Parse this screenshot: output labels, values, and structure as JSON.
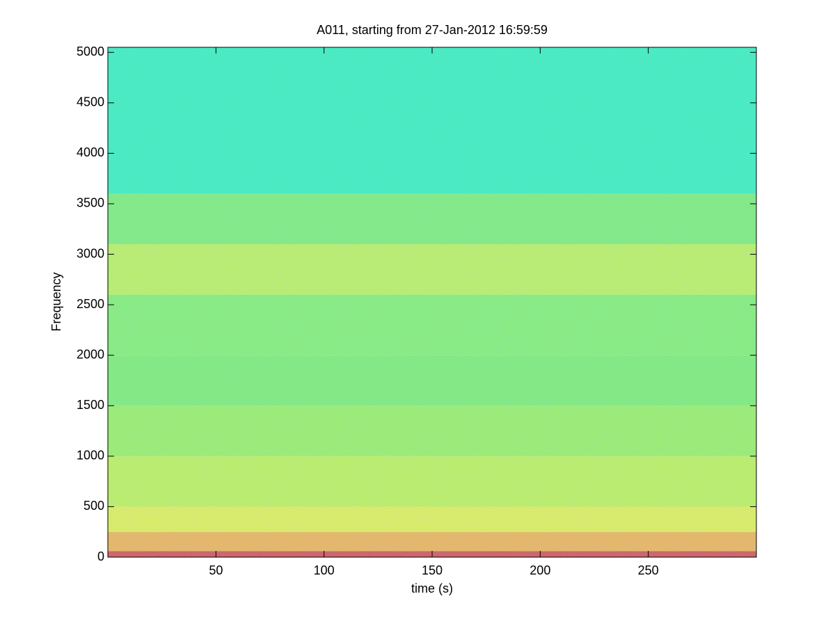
{
  "chart_data": {
    "type": "spectrogram",
    "title": "A011, starting from 27-Jan-2012 16:59:59",
    "xlabel": "time (s)",
    "ylabel": "Frequency",
    "xlim": [
      0,
      300
    ],
    "ylim": [
      0,
      5050
    ],
    "xticks": [
      50,
      100,
      150,
      200,
      250
    ],
    "yticks": [
      0,
      500,
      1000,
      1500,
      2000,
      2500,
      3000,
      3500,
      4000,
      4500,
      5000
    ],
    "colormap": "jet",
    "bands": [
      {
        "from": 0,
        "to": 60,
        "color": "#d83a00"
      },
      {
        "from": 60,
        "to": 250,
        "color": "#f2b400"
      },
      {
        "from": 250,
        "to": 500,
        "color": "#e6f000"
      },
      {
        "from": 500,
        "to": 1000,
        "color": "#c4f224"
      },
      {
        "from": 1000,
        "to": 1500,
        "color": "#a2f040"
      },
      {
        "from": 1500,
        "to": 2000,
        "color": "#86ee5c"
      },
      {
        "from": 2000,
        "to": 2600,
        "color": "#8cf05a"
      },
      {
        "from": 2600,
        "to": 3100,
        "color": "#c2f232"
      },
      {
        "from": 3100,
        "to": 3600,
        "color": "#86ee64"
      },
      {
        "from": 3600,
        "to": 5050,
        "color": "#3ef0b8"
      }
    ]
  }
}
